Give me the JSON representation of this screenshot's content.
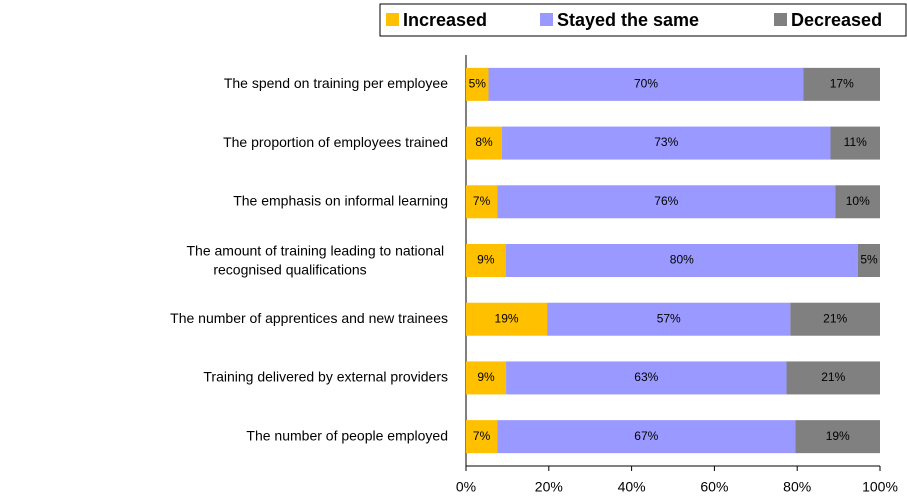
{
  "chart_data": {
    "type": "bar",
    "orientation": "horizontal",
    "stacking": "percent",
    "categories": [
      "The spend on training per employee",
      "The proportion of employees trained",
      "The emphasis on informal learning",
      "The amount of training leading to national recognised qualifications",
      "The number of apprentices and new trainees",
      "Training delivered by external providers",
      "The number of people employed"
    ],
    "series": [
      {
        "name": "Increased",
        "color": "#ffc000",
        "values": [
          5,
          8,
          7,
          9,
          19,
          9,
          7
        ],
        "value_labels": [
          "5%",
          "8%",
          "7%",
          "9%",
          "19%",
          "9%",
          "7%"
        ]
      },
      {
        "name": "Stayed the same",
        "color": "#9999ff",
        "values": [
          70,
          73,
          76,
          80,
          57,
          63,
          67
        ],
        "value_labels": [
          "70%",
          "73%",
          "76%",
          "80%",
          "57%",
          "63%",
          "67%"
        ]
      },
      {
        "name": "Decreased",
        "color": "#808080",
        "values": [
          17,
          11,
          10,
          5,
          21,
          21,
          19
        ],
        "value_labels": [
          "17%",
          "11%",
          "10%",
          "5%",
          "21%",
          "21%",
          "19%"
        ]
      }
    ],
    "xlim": [
      0,
      100
    ],
    "xticks": [
      {
        "value": 0,
        "label": "0%"
      },
      {
        "value": 20,
        "label": "20%"
      },
      {
        "value": 40,
        "label": "40%"
      },
      {
        "value": 60,
        "label": "60%"
      },
      {
        "value": 80,
        "label": "80%"
      },
      {
        "value": 100,
        "label": "100%"
      }
    ],
    "legend": "top"
  }
}
